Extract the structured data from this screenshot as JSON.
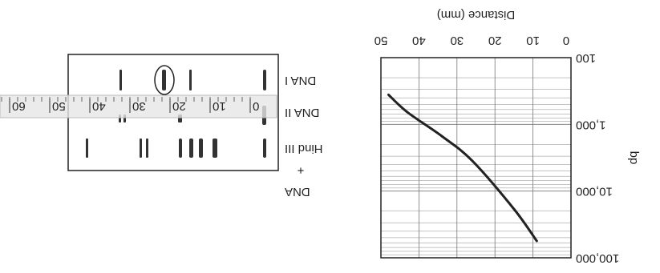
{
  "chart_data": {
    "type": "line",
    "x_label": "Distance (mm)",
    "y_label": "bp",
    "x": [
      9,
      15,
      26,
      34,
      43,
      48
    ],
    "values": [
      56000,
      18600,
      3500,
      1500,
      660,
      360
    ],
    "color": "#222222",
    "xlim": [
      0,
      50
    ],
    "xticks": [
      0,
      10,
      20,
      30,
      40,
      50
    ],
    "ylim": [
      100,
      100000
    ],
    "log_y": true,
    "yticks": [
      {
        "value": 100,
        "label": "100"
      },
      {
        "value": 1000,
        "label": "1,000"
      },
      {
        "value": 10000,
        "label": "10,000"
      },
      {
        "value": 100000,
        "label": "100,000"
      }
    ],
    "grid": true
  },
  "gel": {
    "lane_labels": [
      [
        "DNA",
        "+",
        "Hind III"
      ],
      [
        "DNA II"
      ],
      [
        "DNA I"
      ]
    ],
    "ruler_ticks": [
      0,
      10,
      20,
      30,
      40,
      50,
      60
    ]
  }
}
